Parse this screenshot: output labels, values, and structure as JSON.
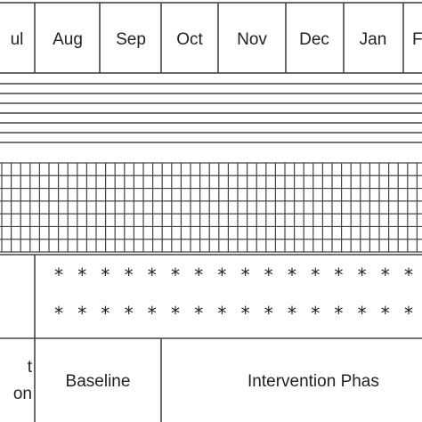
{
  "months": [
    "ul",
    "Aug",
    "Sep",
    "Oct",
    "Nov",
    "Dec",
    "Jan",
    "F"
  ],
  "phases": {
    "left_line1": "t",
    "left_line2": "on",
    "baseline": "Baseline",
    "intervention": "Intervention Phas"
  },
  "asterisk_glyph": "*",
  "asterisk_rows": 2,
  "asterisks_per_row": 16,
  "grid_rows": 7,
  "grid_columns": 45,
  "line_count": 7,
  "colors": {
    "ink": "#444444",
    "text": "#222222",
    "background": "#ffffff"
  }
}
